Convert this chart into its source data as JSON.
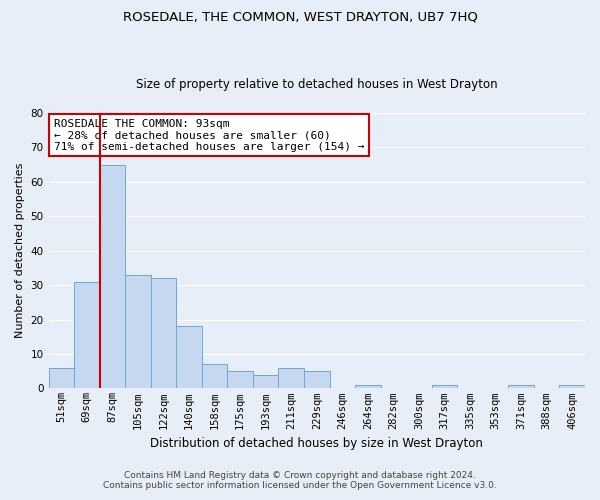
{
  "title": "ROSEDALE, THE COMMON, WEST DRAYTON, UB7 7HQ",
  "subtitle": "Size of property relative to detached houses in West Drayton",
  "xlabel": "Distribution of detached houses by size in West Drayton",
  "ylabel": "Number of detached properties",
  "bin_labels": [
    "51sqm",
    "69sqm",
    "87sqm",
    "105sqm",
    "122sqm",
    "140sqm",
    "158sqm",
    "175sqm",
    "193sqm",
    "211sqm",
    "229sqm",
    "246sqm",
    "264sqm",
    "282sqm",
    "300sqm",
    "317sqm",
    "335sqm",
    "353sqm",
    "371sqm",
    "388sqm",
    "406sqm"
  ],
  "bar_heights": [
    6,
    31,
    65,
    33,
    32,
    18,
    7,
    5,
    4,
    6,
    5,
    0,
    1,
    0,
    0,
    1,
    0,
    0,
    1,
    0,
    1
  ],
  "bar_color": "#c5d8f0",
  "bar_edge_color": "#6aaad4",
  "property_line_color": "#cc0000",
  "ylim": [
    0,
    80
  ],
  "yticks": [
    0,
    10,
    20,
    30,
    40,
    50,
    60,
    70,
    80
  ],
  "annotation_text": "ROSEDALE THE COMMON: 93sqm\n← 28% of detached houses are smaller (60)\n71% of semi-detached houses are larger (154) →",
  "annotation_box_color": "#ffffff",
  "annotation_box_edge": "#cc0000",
  "footnote1": "Contains HM Land Registry data © Crown copyright and database right 2024.",
  "footnote2": "Contains public sector information licensed under the Open Government Licence v3.0.",
  "background_color": "#e8eef8",
  "grid_color": "#ffffff",
  "title_fontsize": 9.5,
  "subtitle_fontsize": 8.5,
  "ylabel_fontsize": 8,
  "xlabel_fontsize": 8.5,
  "tick_fontsize": 7.5,
  "annot_fontsize": 8,
  "footnote_fontsize": 6.5
}
